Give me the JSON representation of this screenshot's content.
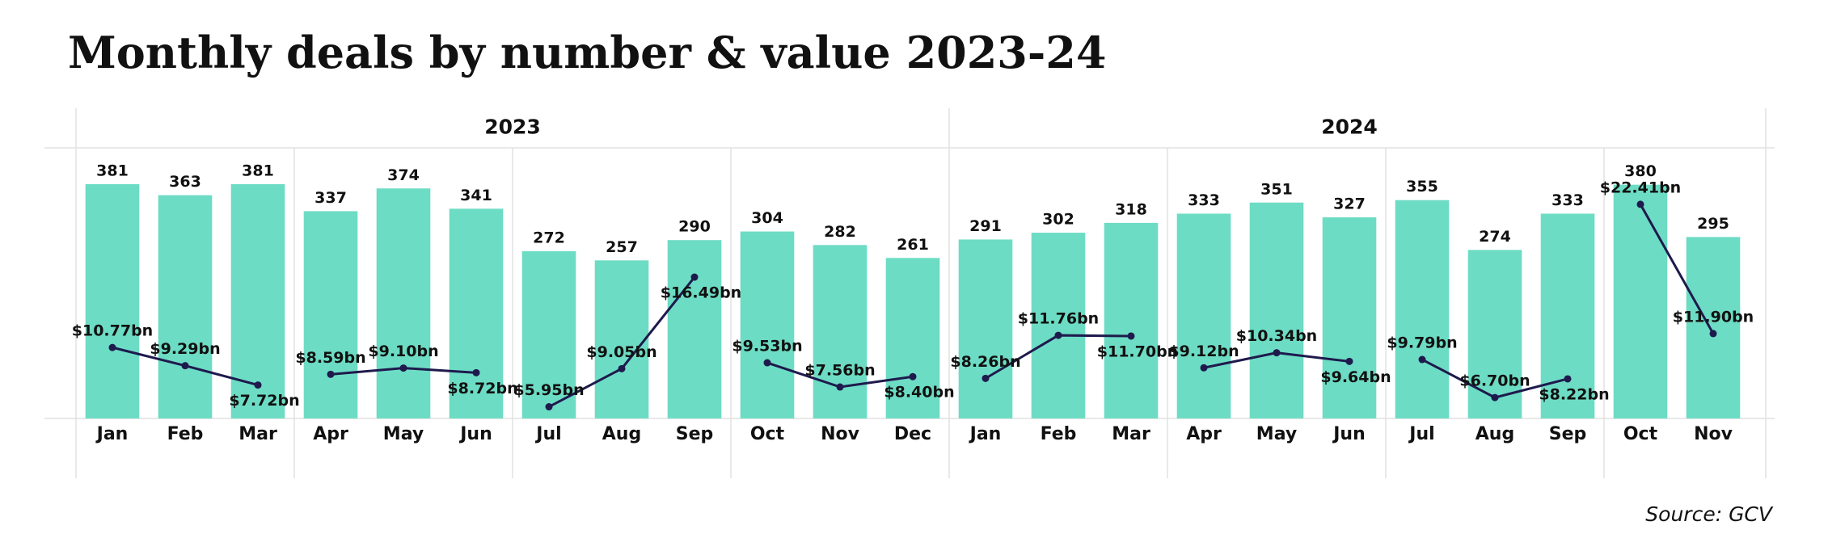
{
  "chart_data": {
    "type": "bar-line",
    "title": "Monthly deals by number & value 2023-24",
    "source": "Source: GCV",
    "year_labels": [
      "2023",
      "2024"
    ],
    "categories": [
      "Jan",
      "Feb",
      "Mar",
      "Apr",
      "May",
      "Jun",
      "Jul",
      "Aug",
      "Sep",
      "Oct",
      "Nov",
      "Dec",
      "Jan",
      "Feb",
      "Mar",
      "Apr",
      "May",
      "Jun",
      "Jul",
      "Aug",
      "Sep",
      "Oct",
      "Nov"
    ],
    "ylim": [
      0,
      440
    ],
    "y2lim": [
      5,
      27
    ],
    "series": [
      {
        "type": "bar",
        "color": "#6ddcc4",
        "values": [
          381,
          363,
          381,
          337,
          374,
          341,
          272,
          257,
          290,
          304,
          282,
          261,
          291,
          302,
          318,
          333,
          351,
          327,
          355,
          274,
          333,
          380,
          295
        ]
      },
      {
        "type": "line",
        "axis": "y2",
        "color": "#1e1a4d",
        "values": [
          10.77,
          9.29,
          7.72,
          8.59,
          9.1,
          8.72,
          5.95,
          9.05,
          16.49,
          9.53,
          7.56,
          8.4,
          8.26,
          11.76,
          11.7,
          9.12,
          10.34,
          9.64,
          9.79,
          6.7,
          8.22,
          22.41,
          11.9
        ],
        "value_labels": [
          "$10.77bn",
          "$9.29bn",
          "$7.72bn",
          "$8.59bn",
          "$9.10bn",
          "$8.72bn",
          "$5.95bn",
          "$9.05bn",
          "$16.49bn",
          "$9.53bn",
          "$7.56bn",
          "$8.40bn",
          "$8.26bn",
          "$11.76bn",
          "$11.70bn",
          "$9.12bn",
          "$10.34bn",
          "$9.64bn",
          "$9.79bn",
          "$6.70bn",
          "$8.22bn",
          "$22.41bn",
          "$11.90bn"
        ]
      }
    ]
  }
}
